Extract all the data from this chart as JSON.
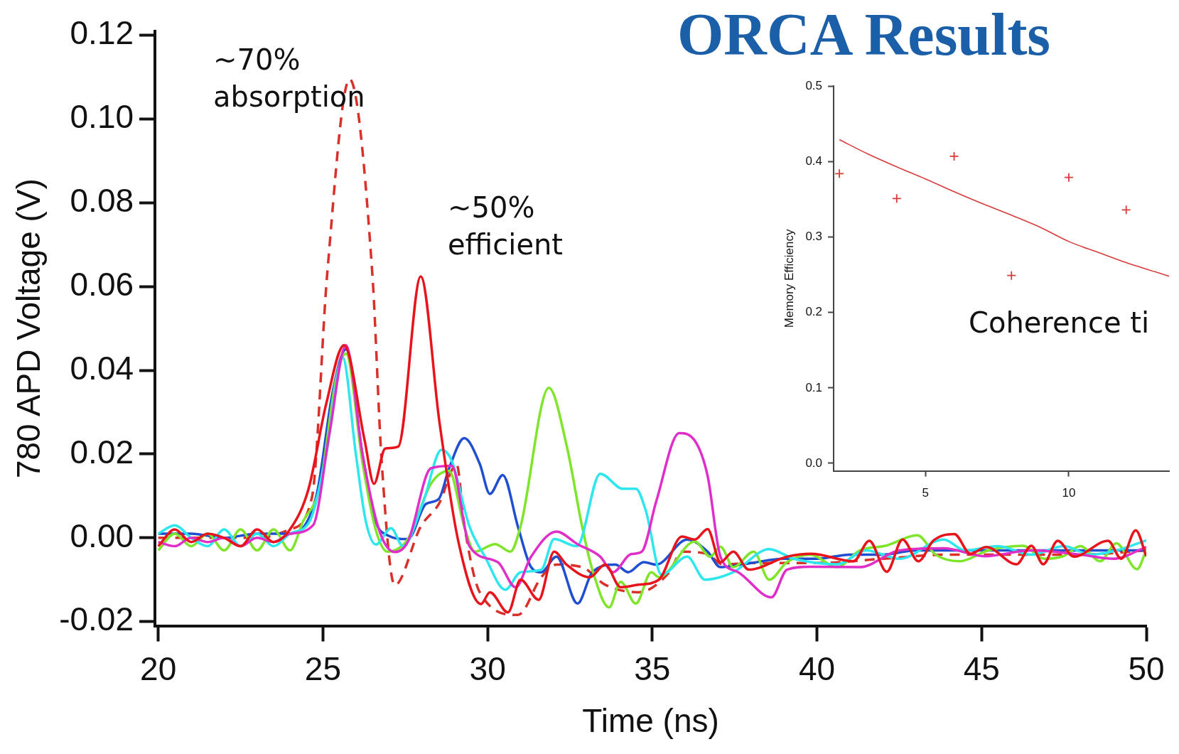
{
  "chart_data": [
    {
      "type": "line",
      "title": "ORCA Results",
      "xlabel": "Time (ns)",
      "ylabel": "780 APD Voltage (V)",
      "annotations": [
        "~70%\nabsorption",
        "~50%\nefficient"
      ],
      "xlim": [
        19.9,
        50
      ],
      "xticks": [
        20,
        25,
        30,
        35,
        40,
        45,
        50
      ],
      "ylim": [
        -0.021,
        0.121
      ],
      "yticks": [
        {
          "value": -0.02,
          "label": "-0.02"
        },
        {
          "value": 0,
          "label": "0.00"
        },
        {
          "value": 0.02,
          "label": "0.02"
        },
        {
          "value": 0.04,
          "label": "0.04"
        },
        {
          "value": 0.06,
          "label": "0.06"
        },
        {
          "value": 0.08,
          "label": "0.08"
        },
        {
          "value": 0.1,
          "label": "0.10"
        },
        {
          "value": 0.12,
          "label": "0.12"
        }
      ],
      "marker": "none",
      "line_style": "solid",
      "series": [
        {
          "color": "#d9302a",
          "line_style": "dashed",
          "x": [
            20,
            21,
            22,
            23,
            24,
            24.67,
            25.13,
            25.81,
            26.5,
            26.78,
            27.18,
            27.97,
            28.52,
            29.06,
            29.3,
            29.76,
            30.92,
            31.63,
            32.09,
            32.87,
            33.57,
            34.58,
            35.52,
            35.9,
            36.68,
            37.15,
            38,
            40,
            42,
            44,
            46,
            48,
            50
          ],
          "values": [
            0,
            0,
            0,
            0,
            0.002,
            0.0098,
            0.063,
            0.1095,
            0.063,
            0.0187,
            -0.0113,
            0.0027,
            0.0081,
            0.0175,
            0.0027,
            -0.013,
            -0.0184,
            -0.0094,
            -0.0064,
            -0.007,
            -0.0112,
            -0.013,
            -0.0082,
            -0.0033,
            -0.0039,
            -0.0064,
            -0.006,
            -0.006,
            -0.005,
            -0.004,
            -0.004,
            -0.004,
            -0.003
          ]
        },
        {
          "color": "#1f4fd0",
          "x": [
            20,
            21,
            22,
            23,
            24,
            24.8,
            25.3,
            25.7,
            26.2,
            26.6,
            26.96,
            27.58,
            28.13,
            28.52,
            28.83,
            29.29,
            29.76,
            30.07,
            30.46,
            30.92,
            31.32,
            31.63,
            32.09,
            32.73,
            33.18,
            33.88,
            34.27,
            34.74,
            35.12,
            36.06,
            36.68,
            37.07,
            38,
            39,
            40,
            41,
            42,
            43,
            44,
            45,
            46,
            47,
            48,
            49,
            50
          ],
          "values": [
            0.001,
            0.001,
            0,
            0.001,
            0.001,
            0.01,
            0.035,
            0.045,
            0.02,
            0.004,
            0.0006,
            -0.0003,
            0.0081,
            0.0093,
            0.0166,
            0.0238,
            0.0177,
            0.0105,
            0.015,
            0.0027,
            -0.007,
            -0.0082,
            -0.0045,
            -0.0157,
            -0.0082,
            -0.0064,
            -0.0082,
            -0.0058,
            -0.0064,
            -0.0004,
            -0.0033,
            -0.007,
            -0.006,
            -0.005,
            -0.005,
            -0.004,
            -0.004,
            -0.003,
            -0.003,
            -0.003,
            -0.003,
            -0.003,
            -0.003,
            -0.003,
            -0.003
          ]
        },
        {
          "color": "#7ee52a",
          "x": [
            20,
            20.5,
            21,
            21.5,
            22,
            22.5,
            23,
            23.5,
            24,
            24.4,
            24.9,
            25.4,
            25.7,
            26.2,
            26.6,
            26.96,
            27.58,
            28.28,
            28.83,
            29.29,
            29.61,
            30.23,
            30.69,
            31.0,
            31.86,
            32.4,
            32.87,
            33.18,
            33.69,
            34.04,
            34.5,
            34.97,
            35.2,
            36.29,
            36.76,
            37.07,
            37.46,
            38.08,
            38.55,
            39.09,
            39.8,
            40.6,
            41.3,
            42.08,
            43.05,
            43.6,
            44.33,
            45.2,
            46.26,
            46.9,
            47.47,
            48.0,
            48.6,
            49.09,
            49.72,
            50
          ],
          "values": [
            -0.003,
            0.001,
            -0.002,
            0.001,
            -0.003,
            0.002,
            -0.003,
            0.002,
            -0.003,
            0.004,
            0.012,
            0.038,
            0.044,
            0.018,
            0.002,
            -0.0033,
            -0.0003,
            0.0129,
            0.016,
            0.0027,
            -0.0033,
            -0.0015,
            -0.0033,
            0.0027,
            0.0358,
            0.022,
            0.0027,
            -0.0076,
            -0.0166,
            -0.0105,
            -0.0157,
            -0.0082,
            -0.0094,
            -0.0009,
            -0.0045,
            -0.0021,
            -0.007,
            -0.0033,
            -0.01,
            -0.0058,
            -0.004,
            -0.007,
            -0.003,
            -0.0019,
            0.0006,
            -0.004,
            -0.0056,
            -0.003,
            -0.0019,
            -0.005,
            -0.0044,
            -0.002,
            -0.0056,
            -0.0013,
            -0.0075,
            -0.0029
          ]
        },
        {
          "color": "#2ee6ee",
          "x": [
            20,
            20.5,
            21,
            21.5,
            22,
            22.5,
            23,
            23.5,
            24,
            24.6,
            25.1,
            25.6,
            26.0,
            26.3,
            26.61,
            27.07,
            27.43,
            28.05,
            28.6,
            28.91,
            29.45,
            29.92,
            30.54,
            31.0,
            31.63,
            32.02,
            32.71,
            33.42,
            34.11,
            34.5,
            34.81,
            35.28,
            36.06,
            36.6,
            37.46,
            38.55,
            39.3,
            40.62,
            41.5,
            42.5,
            43.85,
            44.5,
            45.5,
            46.5,
            47.5,
            48.3,
            49.1,
            50
          ],
          "values": [
            0.001,
            0.003,
            0,
            -0.002,
            0.002,
            -0.002,
            0.001,
            -0.002,
            0.001,
            0.004,
            0.02,
            0.043,
            0.02,
            0.004,
            -0.0016,
            0.0023,
            -0.002,
            0.0087,
            0.021,
            0.0184,
            0.0027,
            -0.0045,
            -0.0124,
            -0.0082,
            -0.0076,
            -0.0003,
            -0.002,
            0.0153,
            0.0117,
            0.0117,
            0.0063,
            -0.0088,
            -0.0045,
            -0.01,
            -0.0082,
            -0.0027,
            -0.005,
            -0.0063,
            -0.003,
            -0.005,
            -0.0004,
            -0.003,
            -0.002,
            -0.004,
            -0.002,
            -0.004,
            -0.003,
            -0.0006
          ]
        },
        {
          "color": "#e02fc8",
          "x": [
            20,
            20.5,
            21,
            21.5,
            22,
            22.5,
            23,
            23.5,
            24,
            24.7,
            25.2,
            25.7,
            26.2,
            26.7,
            27.18,
            27.58,
            28.28,
            28.91,
            29.45,
            30.31,
            30.85,
            31.32,
            32.09,
            32.73,
            33.42,
            33.81,
            34.35,
            34.68,
            35.12,
            35.82,
            36.29,
            36.68,
            37.07,
            37.61,
            38.62,
            39.09,
            39.82,
            41.3,
            42.5,
            43.85,
            45.1,
            46.5,
            48,
            49,
            50
          ],
          "values": [
            -0.001,
            -0.002,
            0,
            -0.001,
            0,
            -0.002,
            0,
            -0.001,
            0.001,
            0.003,
            0.025,
            0.046,
            0.02,
            0.002,
            -0.0034,
            -0.0009,
            0.0166,
            0.0172,
            -0.002,
            -0.0058,
            -0.0118,
            -0.0045,
            0.0015,
            -0.0015,
            -0.0045,
            -0.0082,
            -0.0039,
            -0.0033,
            0.0087,
            0.025,
            0.0232,
            0.0148,
            -0.0045,
            -0.0082,
            -0.0142,
            -0.0076,
            -0.0069,
            -0.007,
            -0.003,
            -0.0025,
            -0.0044,
            -0.003,
            -0.004,
            -0.005,
            -0.0022
          ]
        },
        {
          "color": "#e8141c",
          "x": [
            20,
            20.5,
            21,
            21.5,
            22,
            22.5,
            23,
            23.5,
            24,
            24.56,
            25.1,
            25.64,
            26.27,
            26.55,
            26.89,
            27.29,
            27.97,
            28.54,
            29.11,
            29.8,
            30.07,
            30.62,
            31.0,
            31.55,
            32.02,
            32.4,
            33.1,
            33.57,
            34.04,
            34.58,
            35.2,
            35.9,
            36.29,
            36.68,
            37.07,
            37.46,
            37.93,
            39.09,
            39.82,
            41.11,
            41.59,
            42.12,
            42.6,
            43.08,
            43.53,
            44.17,
            44.66,
            45.14,
            46.06,
            46.51,
            46.87,
            47.31,
            47.8,
            48.84,
            49.24,
            49.68,
            50
          ],
          "values": [
            -0.002,
            0.002,
            -0.001,
            0.001,
            0,
            -0.002,
            0.002,
            -0.001,
            0.002,
            0.0116,
            0.032,
            0.046,
            0.0231,
            0.0129,
            0.0213,
            0.0218,
            0.0624,
            0.0275,
            -0.0008,
            -0.0158,
            -0.013,
            -0.0178,
            -0.01,
            -0.0148,
            -0.0033,
            -0.0064,
            -0.0094,
            -0.0064,
            -0.0118,
            -0.0112,
            -0.01,
            0.0003,
            -0.0004,
            0.0021,
            -0.0058,
            -0.0033,
            -0.0076,
            -0.0045,
            -0.0038,
            -0.0056,
            -0.0007,
            -0.0081,
            -0.0004,
            -0.0056,
            -0.0007,
            0.0009,
            -0.0038,
            -0.0022,
            -0.0063,
            -0.0019,
            -0.0063,
            -0.0007,
            -0.0045,
            -0.0007,
            -0.005,
            0.0018,
            -0.0044
          ]
        }
      ]
    },
    {
      "type": "scatter",
      "ylabel": "Memory Efficiency",
      "annotations": [
        "Coherence ti"
      ],
      "xlim": [
        1.8,
        13.5
      ],
      "xticks": [
        5,
        10
      ],
      "ylim": [
        -0.01,
        0.5
      ],
      "yticks": [
        {
          "value": 0,
          "label": "0.0"
        },
        {
          "value": 0.1,
          "label": "0.1"
        },
        {
          "value": 0.2,
          "label": "0.2"
        },
        {
          "value": 0.3,
          "label": "0.3"
        },
        {
          "value": 0.4,
          "label": "0.4"
        },
        {
          "value": 0.5,
          "label": "0.5"
        }
      ],
      "series": [
        {
          "type": "scatter",
          "color": "#d93a3a",
          "marker": "cross",
          "x": [
            2,
            4,
            6,
            8,
            10,
            12
          ],
          "values": [
            0.384,
            0.351,
            0.407,
            0.249,
            0.379,
            0.336
          ]
        },
        {
          "type": "line",
          "color": "#d93a3a",
          "marker": "none",
          "x": [
            2,
            3,
            4,
            5,
            6,
            7,
            8,
            9,
            10,
            11,
            12,
            13,
            13.5
          ],
          "values": [
            0.429,
            0.41,
            0.393,
            0.377,
            0.36,
            0.344,
            0.329,
            0.313,
            0.294,
            0.28,
            0.266,
            0.254,
            0.248
          ]
        }
      ]
    }
  ]
}
